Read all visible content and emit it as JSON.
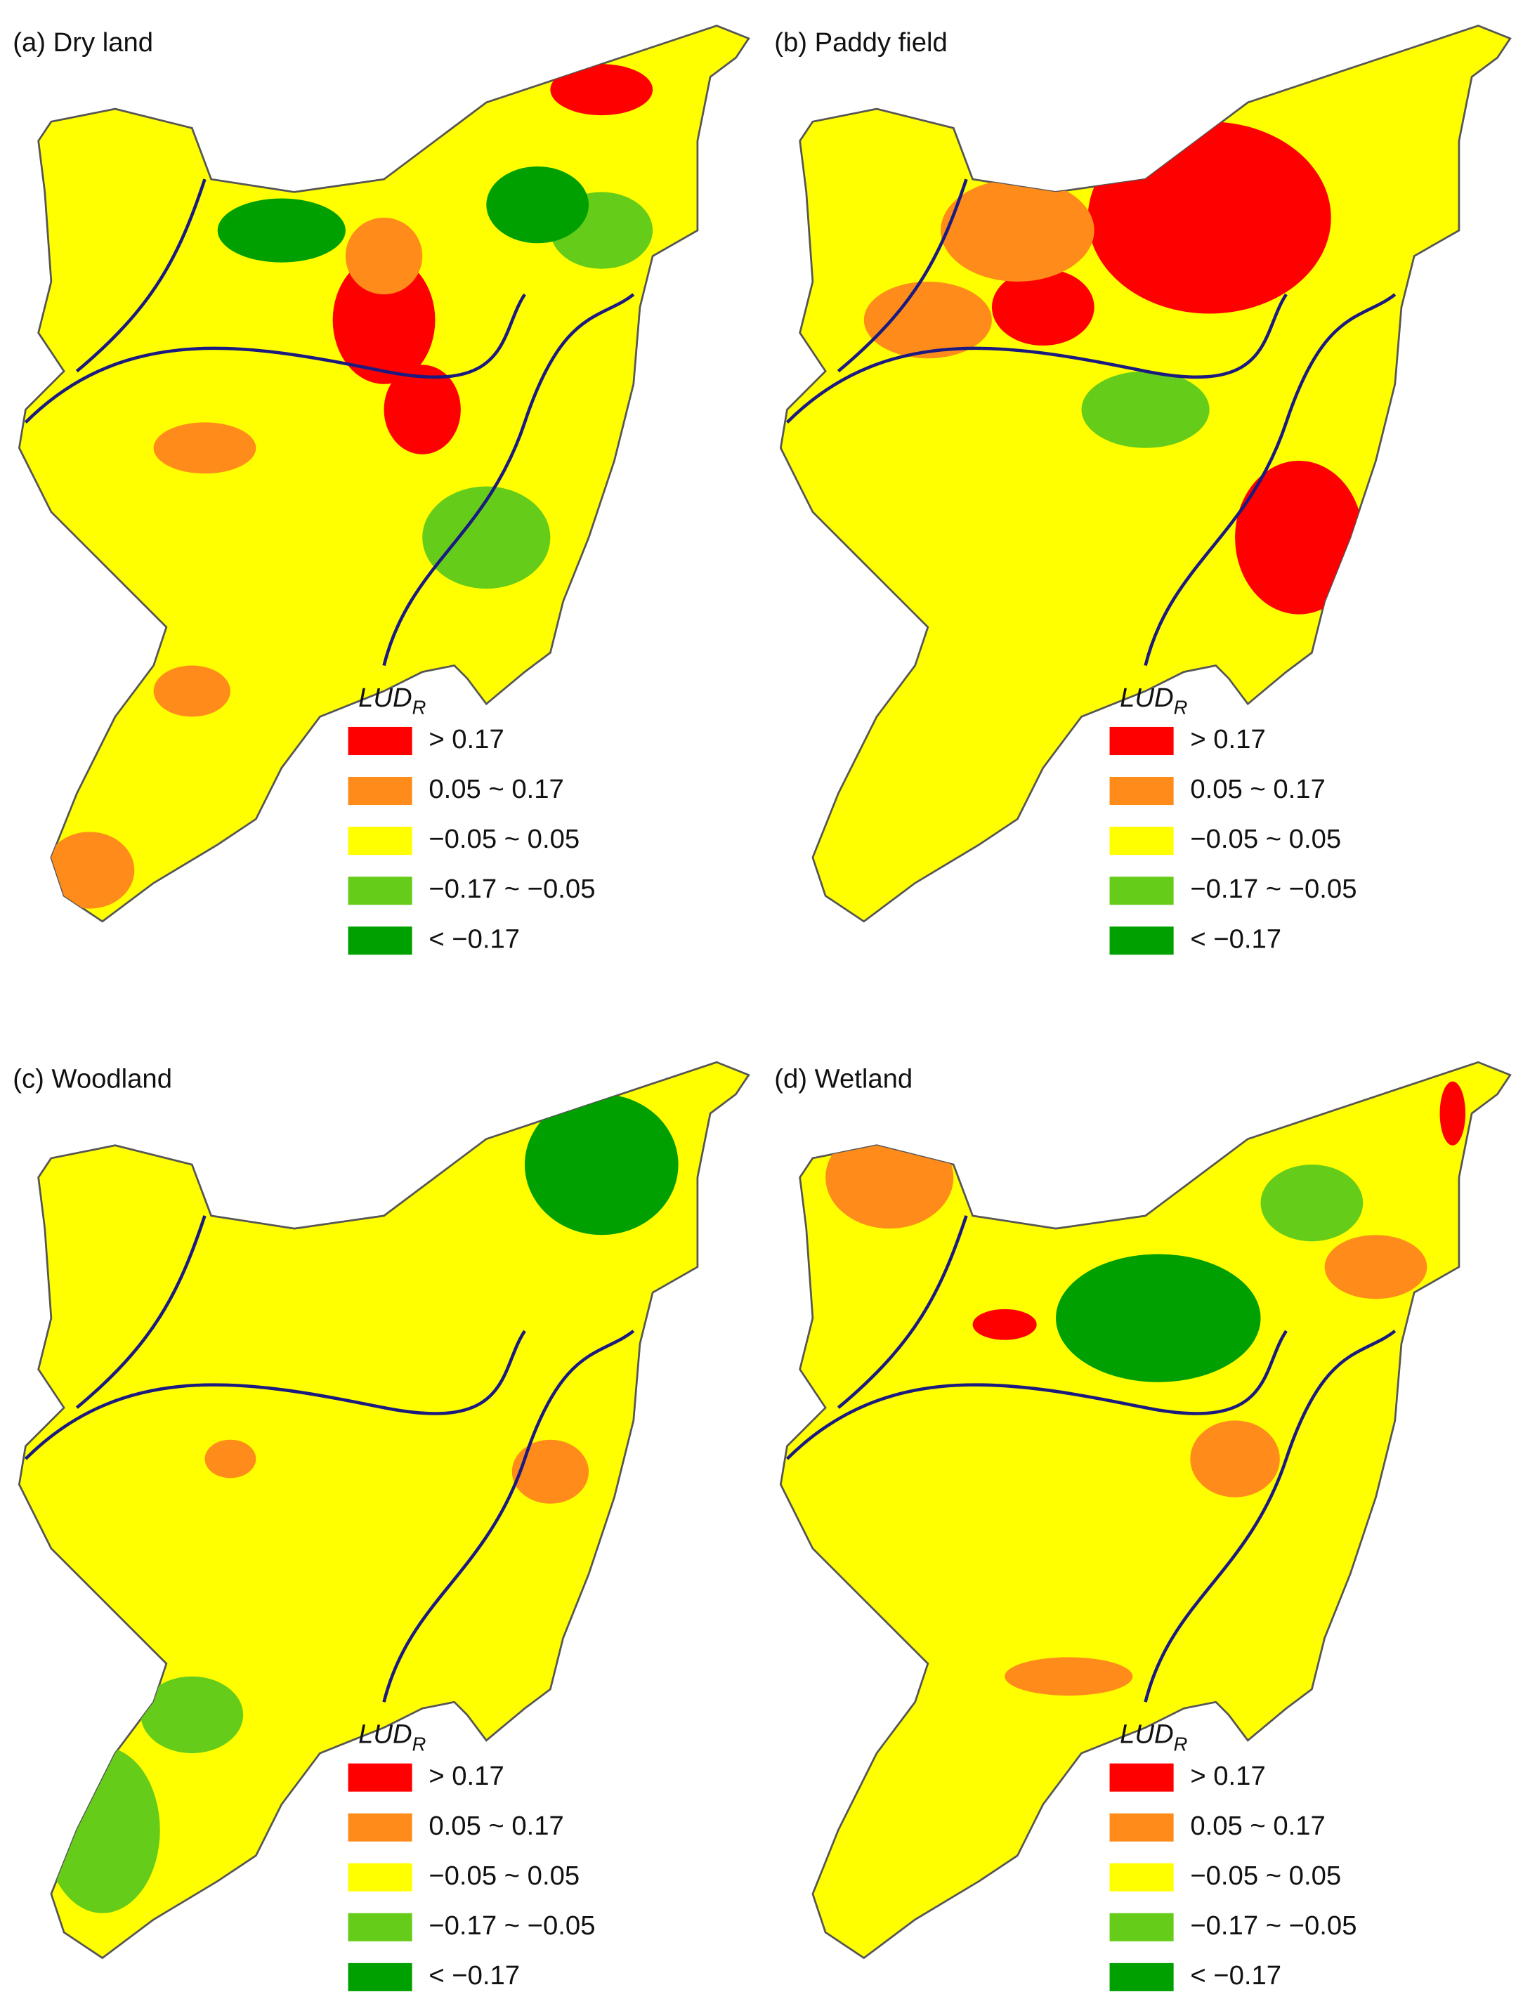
{
  "panels": [
    {
      "title": "(a) Dry land",
      "legend": {
        "title": "LUD",
        "title_subscript": "R",
        "items": [
          {
            "label": "> 0.17",
            "color": "#ff0000"
          },
          {
            "label": "0.05 ~ 0.17",
            "color": "#ff8c1a"
          },
          {
            "label": "−0.05 ~ 0.05",
            "color": "#ffff00"
          },
          {
            "label": "−0.17 ~ −0.05",
            "color": "#66cc1a"
          },
          {
            "label": "< −0.17",
            "color": "#00a000"
          }
        ]
      }
    },
    {
      "title": "(b) Paddy field",
      "legend": {
        "title": "LUD",
        "title_subscript": "R",
        "items": [
          {
            "label": "> 0.17",
            "color": "#ff0000"
          },
          {
            "label": "0.05 ~ 0.17",
            "color": "#ff8c1a"
          },
          {
            "label": "−0.05 ~ 0.05",
            "color": "#ffff00"
          },
          {
            "label": "−0.17 ~ −0.05",
            "color": "#66cc1a"
          },
          {
            "label": "< −0.17",
            "color": "#00a000"
          }
        ]
      }
    },
    {
      "title": "(c) Woodland",
      "legend": {
        "title": "LUD",
        "title_subscript": "R",
        "items": [
          {
            "label": "> 0.17",
            "color": "#ff0000"
          },
          {
            "label": "0.05 ~ 0.17",
            "color": "#ff8c1a"
          },
          {
            "label": "−0.05 ~ 0.05",
            "color": "#ffff00"
          },
          {
            "label": "−0.17 ~ −0.05",
            "color": "#66cc1a"
          },
          {
            "label": "< −0.17",
            "color": "#00a000"
          }
        ]
      }
    },
    {
      "title": "(d) Wetland",
      "legend": {
        "title": "LUD",
        "title_subscript": "R",
        "items": [
          {
            "label": "> 0.17",
            "color": "#ff0000"
          },
          {
            "label": "0.05  ~ 0.17",
            "color": "#ff8c1a"
          },
          {
            "label": "−0.05 ~ 0.05",
            "color": "#ffff00"
          },
          {
            "label": "−0.17 ~ −0.05",
            "color": "#66cc1a"
          },
          {
            "label": "< −0.17",
            "color": "#00a000"
          }
        ]
      }
    }
  ]
}
